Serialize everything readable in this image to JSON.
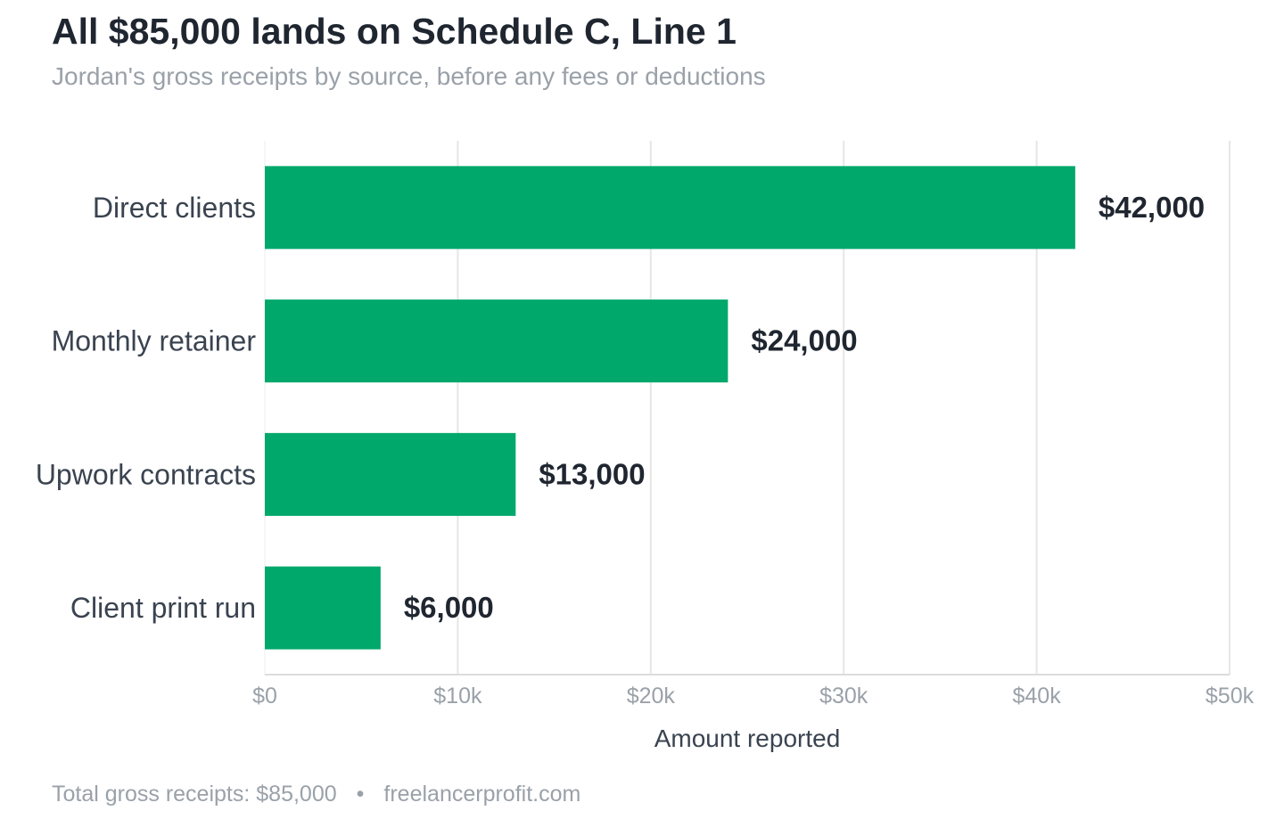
{
  "title": "All $85,000 lands on Schedule C, Line 1",
  "subtitle": "Jordan's gross receipts by source, before any fees or deductions",
  "footer": {
    "note": "Total gross receipts: $85,000",
    "separator": "•",
    "source": "freelancerprofit.com"
  },
  "chart_data": {
    "type": "bar",
    "orientation": "horizontal",
    "categories": [
      "Direct clients",
      "Monthly retainer",
      "Upwork contracts",
      "Client print run"
    ],
    "values": [
      42000,
      24000,
      13000,
      6000
    ],
    "value_labels": [
      "$42,000",
      "$24,000",
      "$13,000",
      "$6,000"
    ],
    "xlabel": "Amount reported",
    "ylabel": "",
    "xlim": [
      0,
      50000
    ],
    "xticks": [
      0,
      10000,
      20000,
      30000,
      40000,
      50000
    ],
    "xtick_labels": [
      "$0",
      "$10k",
      "$20k",
      "$30k",
      "$40k",
      "$50k"
    ],
    "grid": "vertical",
    "legend": "none",
    "colors": {
      "bar": "#00a86b",
      "grid": "#e6e6e6",
      "axis": "#dcdcdc",
      "category_text": "#3a4350",
      "value_text": "#1f2630",
      "tick_text": "#9aa1a9"
    }
  }
}
